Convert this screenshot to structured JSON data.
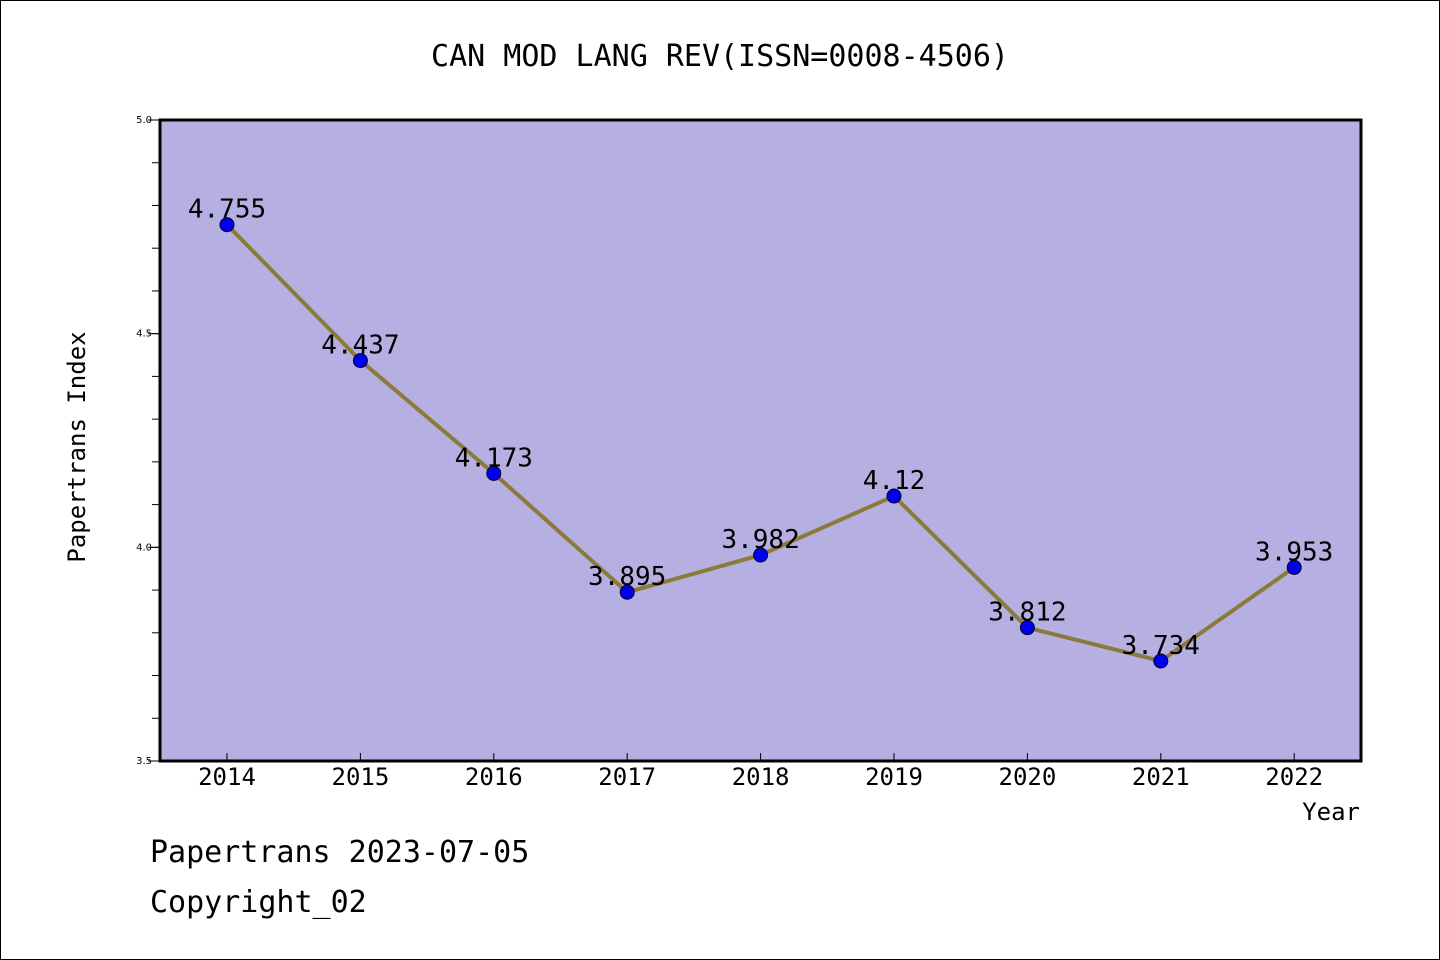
{
  "chart_data": {
    "type": "line",
    "title": "CAN MOD LANG REV(ISSN=0008-4506)",
    "xlabel": "Year",
    "ylabel": "Papertrans Index",
    "categories": [
      "2014",
      "2015",
      "2016",
      "2017",
      "2018",
      "2019",
      "2020",
      "2021",
      "2022"
    ],
    "values": [
      4.755,
      4.437,
      4.173,
      3.895,
      3.982,
      4.12,
      3.812,
      3.734,
      3.953
    ],
    "data_labels": [
      "4.755",
      "4.437",
      "4.173",
      "3.895",
      "3.982",
      "4.12",
      "3.812",
      "3.734",
      "3.953"
    ],
    "ylim": [
      3.5,
      5.0
    ],
    "yticks": [
      "3.5",
      "4.0",
      "4.5",
      "5.0"
    ],
    "grid": false,
    "colors": {
      "plot_background": "#b5afe2",
      "line": "#8c7a3a",
      "marker": "#0000ee"
    }
  },
  "footer": {
    "line1": "Papertrans 2023-07-05",
    "line2": "Copyright_02"
  }
}
